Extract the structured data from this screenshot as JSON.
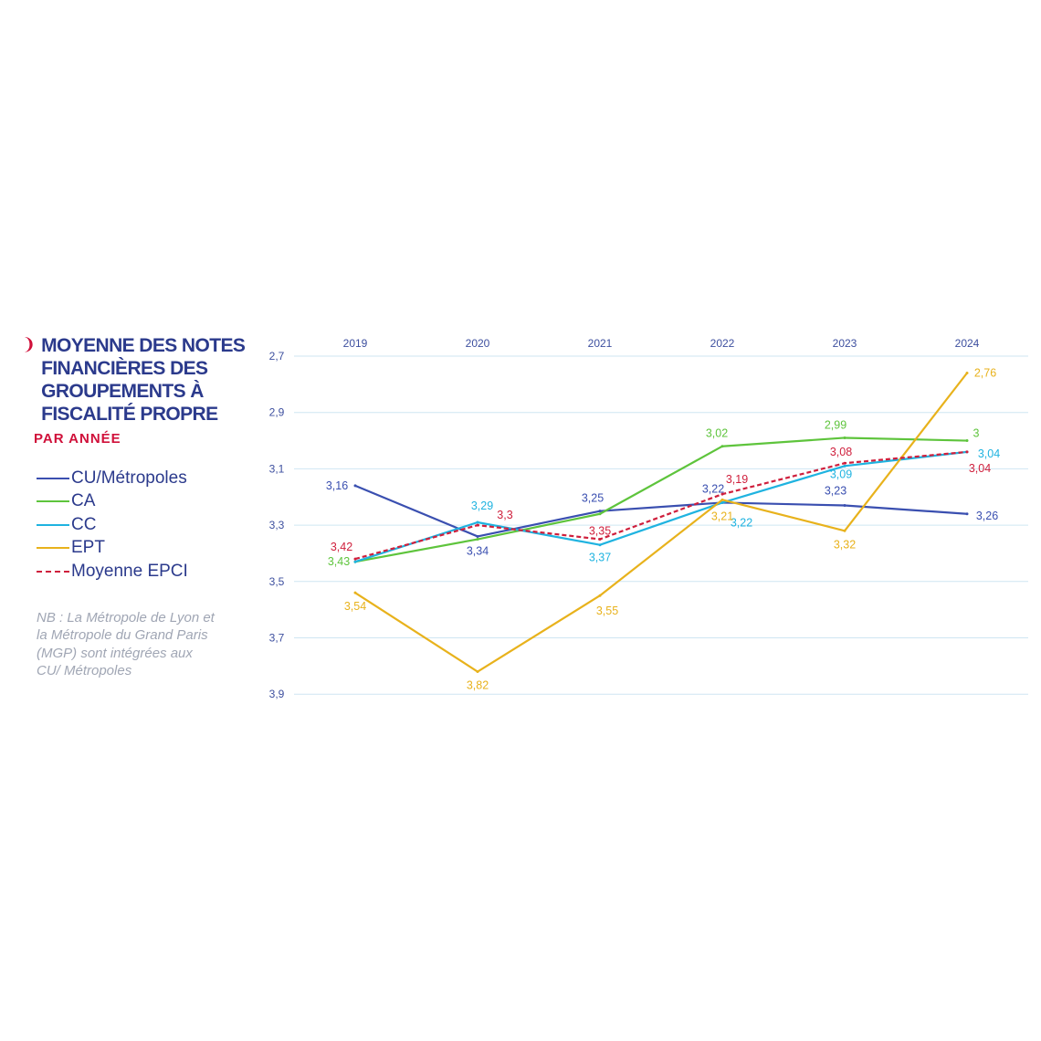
{
  "chart_data": {
    "type": "line",
    "title": "MOYENNE DES NOTES FINANCIÈRES DES GROUPEMENTS À FISCALITÉ PROPRE",
    "subtitle": "PAR ANNÉE",
    "note": "NB : La Métropole de Lyon et la Métropole du Grand Paris (MGP) sont intégrées aux CU/ Métropoles",
    "x": [
      "2019",
      "2020",
      "2021",
      "2022",
      "2023",
      "2024"
    ],
    "y_ticks": [
      "2,7",
      "2,9",
      "3,1",
      "3,3",
      "3,5",
      "3,7",
      "3,9"
    ],
    "ylim": [
      3.9,
      2.7
    ],
    "y_reversed": true,
    "grid": true,
    "legend_position": "left",
    "series": [
      {
        "name": "CU/Métropoles",
        "color": "#3a4fb0",
        "dashed": false,
        "values": [
          3.16,
          3.34,
          3.25,
          3.22,
          3.23,
          3.26
        ],
        "labels": [
          "3,16",
          "3,34",
          "3,25",
          "3,22",
          "3,23",
          "3,26"
        ]
      },
      {
        "name": "CA",
        "color": "#5ec43c",
        "dashed": false,
        "values": [
          3.43,
          3.35,
          3.26,
          3.02,
          2.99,
          3.0
        ],
        "labels": [
          "3,43",
          "",
          "",
          "3,02",
          "2,99",
          "3"
        ]
      },
      {
        "name": "CC",
        "color": "#1fb3e0",
        "dashed": false,
        "values": [
          3.43,
          3.29,
          3.37,
          3.22,
          3.09,
          3.04
        ],
        "labels": [
          "",
          "3,29",
          "3,37",
          "3,22",
          "3,09",
          "3,04"
        ]
      },
      {
        "name": "EPT",
        "color": "#e8b21c",
        "dashed": false,
        "values": [
          3.54,
          3.82,
          3.55,
          3.21,
          3.32,
          2.76
        ],
        "labels": [
          "3,54",
          "3,82",
          "3,55",
          "3,21",
          "3,32",
          "2,76"
        ]
      },
      {
        "name": "Moyenne EPCI",
        "color": "#cf1f3c",
        "dashed": true,
        "values": [
          3.42,
          3.3,
          3.35,
          3.19,
          3.08,
          3.04
        ],
        "labels": [
          "3,42",
          "3,3",
          "3,35",
          "3,19",
          "3,08",
          "3,04"
        ]
      }
    ]
  }
}
